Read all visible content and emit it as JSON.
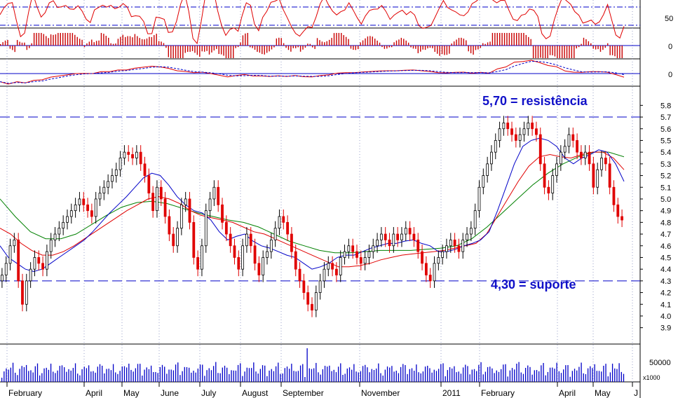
{
  "chart_data": {
    "type": "candlestick",
    "price_panel": {
      "y_ticks": [
        5.8,
        5.7,
        5.6,
        5.5,
        5.4,
        5.3,
        5.2,
        5.1,
        5.0,
        4.9,
        4.8,
        4.7,
        4.6,
        4.5,
        4.4,
        4.3,
        4.2,
        4.1,
        4.0,
        3.9
      ],
      "ylim": [
        3.85,
        5.85
      ],
      "resistance": {
        "value": 5.7,
        "label": "5,70 = resistência"
      },
      "support": {
        "value": 4.3,
        "label": "4,30 = suporte"
      },
      "closes": [
        4.35,
        4.45,
        4.6,
        4.65,
        4.3,
        4.1,
        4.3,
        4.4,
        4.5,
        4.45,
        4.4,
        4.55,
        4.65,
        4.7,
        4.75,
        4.8,
        4.85,
        4.9,
        4.95,
        5.0,
        4.95,
        4.9,
        4.85,
        5.0,
        5.05,
        5.1,
        5.15,
        5.2,
        5.25,
        5.35,
        5.4,
        5.38,
        5.35,
        5.4,
        5.3,
        5.2,
        5.05,
        4.9,
        5.1,
        5.0,
        4.85,
        4.7,
        4.6,
        4.75,
        4.95,
        5.0,
        4.8,
        4.5,
        4.4,
        4.6,
        4.9,
        5.0,
        5.1,
        4.95,
        4.8,
        4.7,
        4.6,
        4.5,
        4.4,
        4.6,
        4.7,
        4.6,
        4.45,
        4.35,
        4.5,
        4.55,
        4.65,
        4.75,
        4.85,
        4.8,
        4.7,
        4.55,
        4.4,
        4.3,
        4.2,
        4.1,
        4.05,
        4.2,
        4.3,
        4.4,
        4.45,
        4.4,
        4.35,
        4.5,
        4.55,
        4.6,
        4.55,
        4.5,
        4.45,
        4.5,
        4.55,
        4.6,
        4.65,
        4.7,
        4.65,
        4.6,
        4.7,
        4.65,
        4.7,
        4.75,
        4.7,
        4.65,
        4.55,
        4.45,
        4.35,
        4.3,
        4.45,
        4.5,
        4.55,
        4.6,
        4.65,
        4.6,
        4.55,
        4.65,
        4.7,
        4.75,
        4.9,
        5.1,
        5.2,
        5.3,
        5.4,
        5.5,
        5.6,
        5.65,
        5.6,
        5.55,
        5.5,
        5.55,
        5.6,
        5.65,
        5.6,
        5.55,
        5.3,
        5.1,
        5.05,
        5.2,
        5.3,
        5.4,
        5.45,
        5.55,
        5.5,
        5.4,
        5.35,
        5.4,
        5.3,
        5.1,
        5.25,
        5.35,
        5.3,
        5.1,
        4.95,
        4.85,
        4.82
      ],
      "ma_short": [
        4.6,
        4.5,
        4.45,
        4.4,
        4.38,
        4.4,
        4.45,
        4.5,
        4.55,
        4.6,
        4.65,
        4.72,
        4.8,
        4.88,
        4.95,
        5.02,
        5.1,
        5.18,
        5.22,
        5.2,
        5.12,
        5.02,
        4.95,
        4.9,
        4.88,
        4.82,
        4.72,
        4.65,
        4.68,
        4.7,
        4.64,
        4.6,
        4.58,
        4.55,
        4.52,
        4.5,
        4.45,
        4.4,
        4.42,
        4.45,
        4.5,
        4.52,
        4.52,
        4.55,
        4.58,
        4.6,
        4.62,
        4.62,
        4.64,
        4.65,
        4.62,
        4.6,
        4.55,
        4.55,
        4.57,
        4.6,
        4.62,
        4.65,
        4.72,
        4.9,
        5.1,
        5.3,
        5.45,
        5.5,
        5.52,
        5.5,
        5.45,
        5.35,
        5.3,
        5.35,
        5.38,
        5.42,
        5.4,
        5.3,
        5.15
      ],
      "ma_mid": [
        4.75,
        4.7,
        4.62,
        4.56,
        4.52,
        4.52,
        4.55,
        4.6,
        4.66,
        4.72,
        4.78,
        4.84,
        4.9,
        4.95,
        5.0,
        5.02,
        5.0,
        4.96,
        4.9,
        4.86,
        4.84,
        4.82,
        4.8,
        4.76,
        4.72,
        4.7,
        4.66,
        4.62,
        4.58,
        4.54,
        4.5,
        4.46,
        4.42,
        4.42,
        4.43,
        4.45,
        4.48,
        4.5,
        4.52,
        4.53,
        4.54,
        4.55,
        4.56,
        4.58,
        4.6,
        4.62,
        4.7,
        4.85,
        5.0,
        5.15,
        5.28,
        5.36,
        5.38,
        5.36,
        5.35,
        5.38,
        5.4,
        5.4,
        5.35,
        5.25
      ],
      "ma_long": [
        5.0,
        4.85,
        4.72,
        4.66,
        4.66,
        4.7,
        4.78,
        4.86,
        4.93,
        4.97,
        4.98,
        4.96,
        4.92,
        4.88,
        4.85,
        4.82,
        4.8,
        4.76,
        4.7,
        4.64,
        4.6,
        4.56,
        4.54,
        4.54,
        4.55,
        4.56,
        4.56,
        4.56,
        4.57,
        4.58,
        4.6,
        4.66,
        4.76,
        4.88,
        5.0,
        5.12,
        5.22,
        5.3,
        5.36,
        5.4,
        5.4,
        5.36
      ]
    },
    "oscillator_panel": {
      "y_tick": "50"
    },
    "histogram_panel": {
      "y_tick": "0"
    },
    "macd_panel": {
      "y_tick": "0"
    },
    "volume_panel": {
      "y_tick": "50000",
      "unit": "x1000"
    },
    "x_axis": [
      "February",
      "April",
      "May",
      "June",
      "July",
      "August",
      "September",
      "November",
      "2011",
      "February",
      "April",
      "May",
      "J"
    ]
  },
  "colors": {
    "up": "#000000",
    "down": "#e00000",
    "ma_short": "#0000c8",
    "ma_mid": "#e00000",
    "ma_long": "#008000",
    "volume": "#0000c8",
    "annotation": "#1010c8"
  }
}
